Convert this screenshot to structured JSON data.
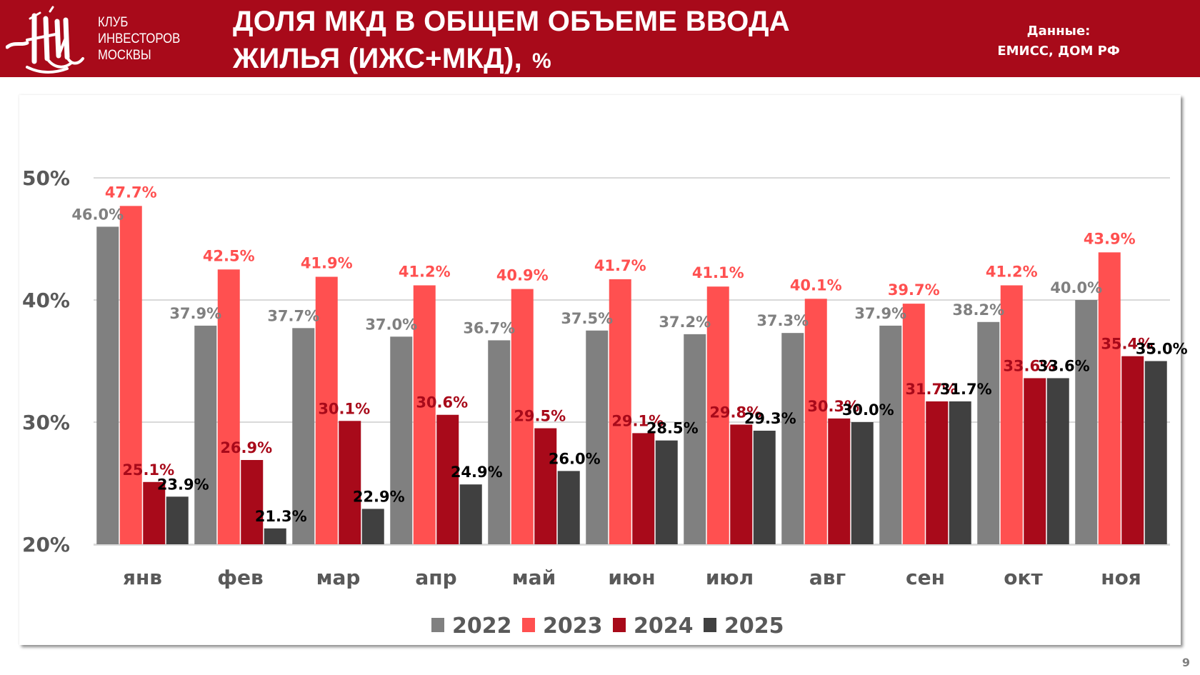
{
  "header": {
    "club_lines": [
      "КЛУБ",
      "ИНВЕСТОРОВ",
      "МОСКВЫ"
    ],
    "title_line1": "ДОЛЯ МКД В ОБЩЕМ ОБЪЕМЕ ВВОДА",
    "title_line2": "ЖИЛЬЯ (ИЖС+МКД),",
    "title_unit": "%",
    "source_label": "Данные:",
    "source_value": "ЕМИСС, ДОМ РФ",
    "logo_icon": "kim-monogram-logo"
  },
  "colors": {
    "header_bg": "#a80a1a",
    "series": [
      "#808080",
      "#ff5050",
      "#a80a1a",
      "#404040"
    ],
    "label_colors": [
      "#808080",
      "#ff5050",
      "#a80a1a",
      "#000000"
    ]
  },
  "page_number": "9",
  "chart_data": {
    "type": "bar",
    "title": "ДОЛЯ МКД В ОБЩЕМ ОБЪЕМЕ ВВОДА ЖИЛЬЯ (ИЖС+МКД), %",
    "xlabel": "",
    "ylabel": "",
    "ylim": [
      20,
      50
    ],
    "yticks": [
      20,
      30,
      40,
      50
    ],
    "ytick_labels": [
      "20%",
      "30%",
      "40%",
      "50%"
    ],
    "grid": true,
    "legend_position": "bottom",
    "categories": [
      "янв",
      "фев",
      "мар",
      "апр",
      "май",
      "июн",
      "июл",
      "авг",
      "сен",
      "окт",
      "ноя"
    ],
    "series": [
      {
        "name": "2022",
        "values": [
          46.0,
          37.9,
          37.7,
          37.0,
          36.7,
          37.5,
          37.2,
          37.3,
          37.9,
          38.2,
          40.0
        ]
      },
      {
        "name": "2023",
        "values": [
          47.7,
          42.5,
          41.9,
          41.2,
          40.9,
          41.7,
          41.1,
          40.1,
          39.7,
          41.2,
          43.9
        ]
      },
      {
        "name": "2024",
        "values": [
          25.1,
          26.9,
          30.1,
          30.6,
          29.5,
          29.1,
          29.8,
          30.3,
          31.7,
          33.6,
          35.4
        ]
      },
      {
        "name": "2025",
        "values": [
          23.9,
          21.3,
          22.9,
          24.9,
          26.0,
          28.5,
          29.3,
          30.0,
          31.7,
          33.6,
          35.0
        ]
      }
    ],
    "value_format": "0.0%"
  }
}
